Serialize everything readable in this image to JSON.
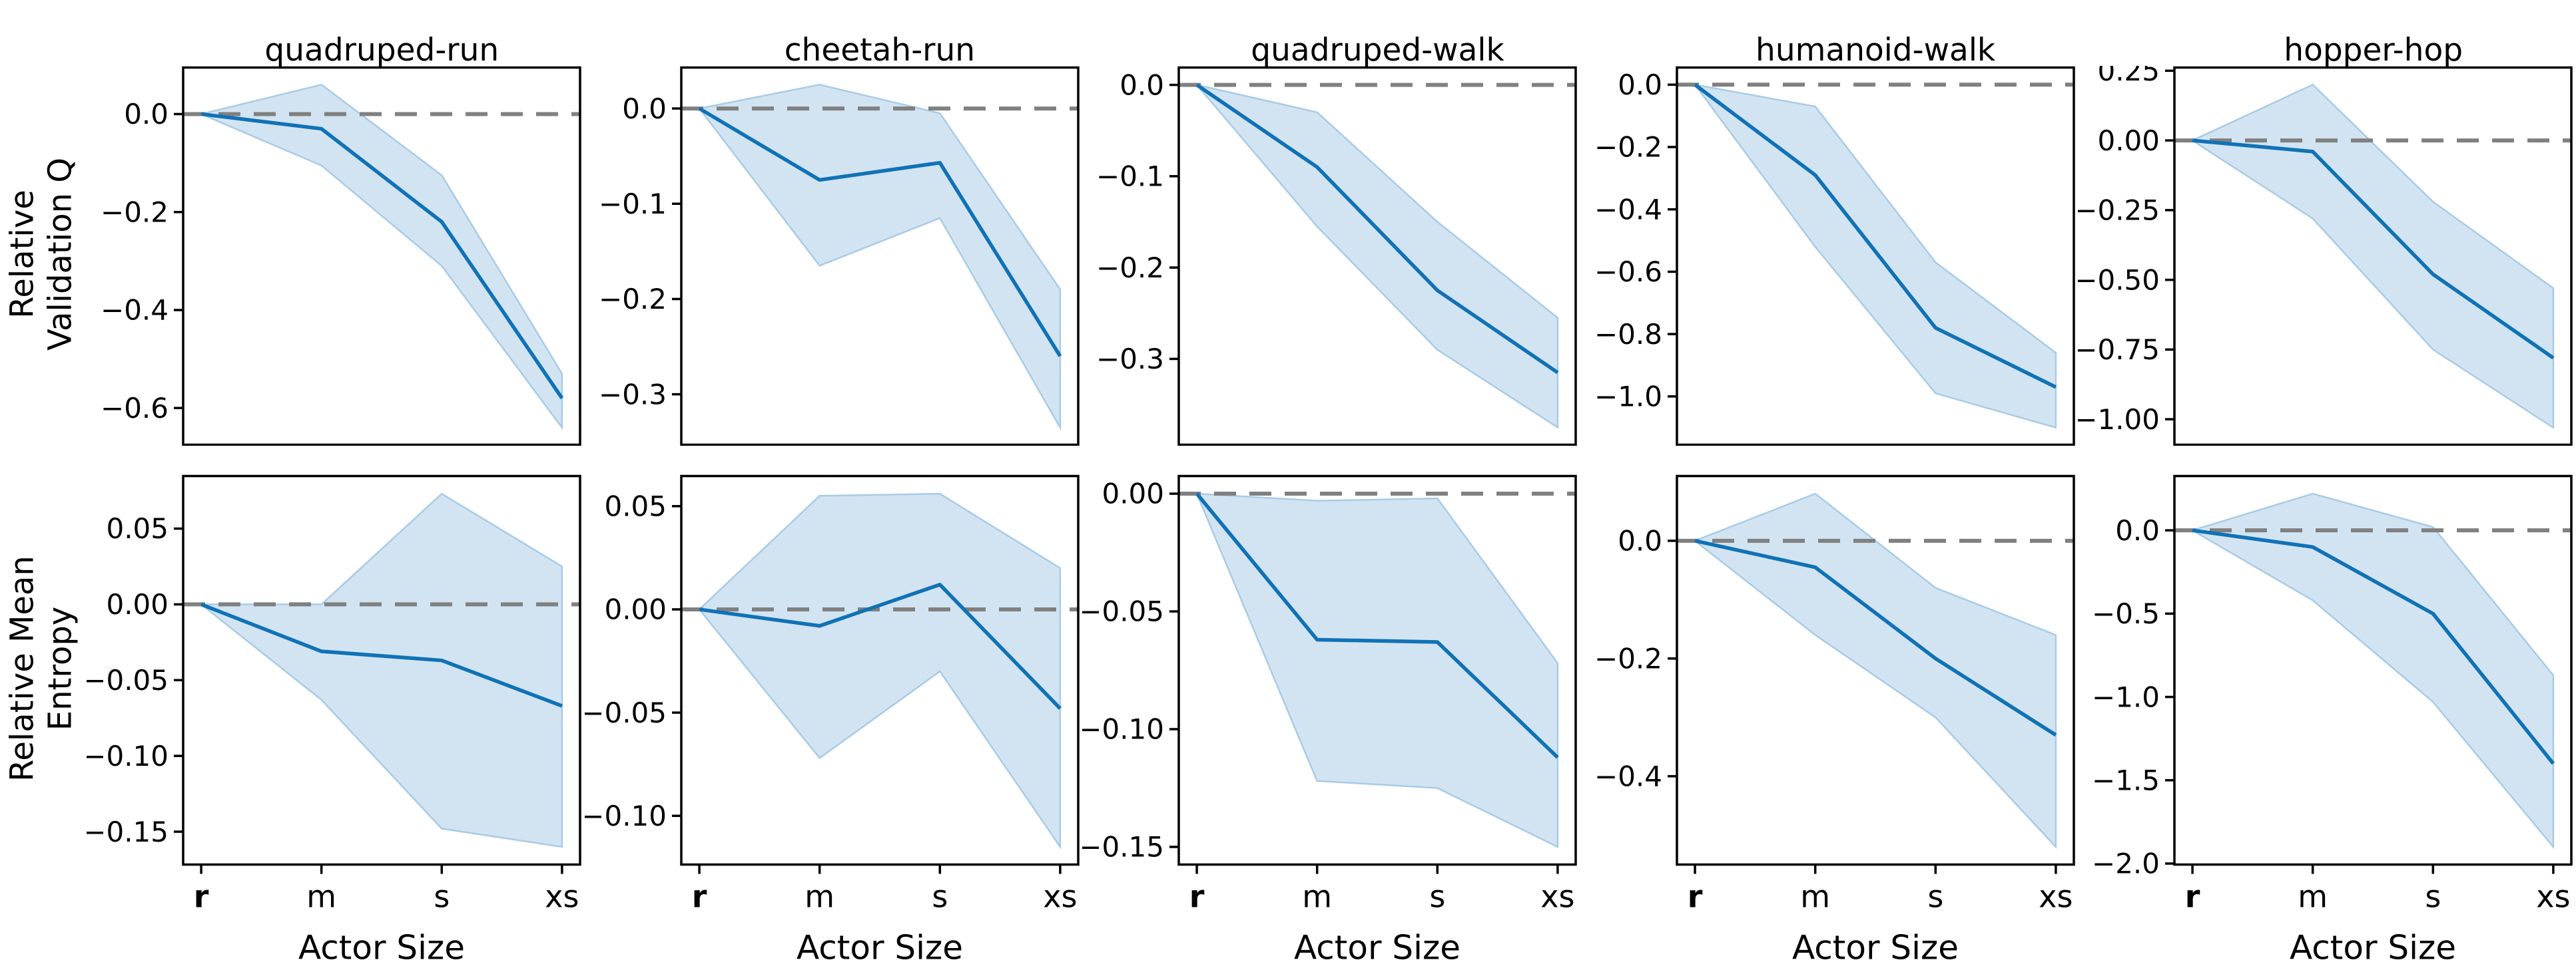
{
  "chart_data": {
    "type": "line",
    "description": "2x5 grid of line plots with shaded confidence bands versus actor size",
    "xlabel": "Actor Size",
    "x_categories": [
      "r",
      "m",
      "s",
      "xs"
    ],
    "columns": [
      "quadruped-run",
      "cheetah-run",
      "quadruped-walk",
      "humanoid-walk",
      "hopper-hop"
    ],
    "row_labels": [
      {
        "line1": "Relative",
        "line2": "Validation Q"
      },
      {
        "line1": "Relative Mean",
        "line2": "Entropy"
      }
    ],
    "colors": {
      "line": "#1072b6",
      "band_fill": "#d2e4f2",
      "band_edge": "#a8cbe6",
      "zero_line": "#808080",
      "axes": "#000000"
    },
    "legend": "none",
    "grid_lines": "off",
    "zero_baseline": 0.0,
    "subplots": [
      {
        "row": 0,
        "col": 0,
        "title": "quadruped-run",
        "ylim": [
          0.095,
          -0.675
        ],
        "ytick_values": [
          0.0,
          -0.2,
          -0.4,
          -0.6
        ],
        "ytick_labels": [
          "0.0",
          "−0.2",
          "−0.4",
          "−0.6"
        ],
        "mean": [
          0.0,
          -0.03,
          -0.22,
          -0.58
        ],
        "upper": [
          0.0,
          0.06,
          -0.125,
          -0.53
        ],
        "lower": [
          0.0,
          -0.105,
          -0.31,
          -0.64
        ]
      },
      {
        "row": 0,
        "col": 1,
        "title": "cheetah-run",
        "ylim": [
          0.043,
          -0.353
        ],
        "ytick_values": [
          0.0,
          -0.1,
          -0.2,
          -0.3
        ],
        "ytick_labels": [
          "0.0",
          "−0.1",
          "−0.2",
          "−0.3"
        ],
        "mean": [
          0.0,
          -0.075,
          -0.057,
          -0.26
        ],
        "upper": [
          0.0,
          0.025,
          -0.005,
          -0.19
        ],
        "lower": [
          0.0,
          -0.165,
          -0.115,
          -0.335
        ]
      },
      {
        "row": 0,
        "col": 2,
        "title": "quadruped-walk",
        "ylim": [
          0.019,
          -0.394
        ],
        "ytick_values": [
          0.0,
          -0.1,
          -0.2,
          -0.3
        ],
        "ytick_labels": [
          "0.0",
          "−0.1",
          "−0.2",
          "−0.3"
        ],
        "mean": [
          0.0,
          -0.09,
          -0.225,
          -0.315
        ],
        "upper": [
          0.0,
          -0.03,
          -0.15,
          -0.255
        ],
        "lower": [
          0.0,
          -0.155,
          -0.29,
          -0.375
        ]
      },
      {
        "row": 0,
        "col": 3,
        "title": "humanoid-walk",
        "ylim": [
          0.055,
          -1.155
        ],
        "ytick_values": [
          0.0,
          -0.2,
          -0.4,
          -0.6,
          -0.8,
          -1.0
        ],
        "ytick_labels": [
          "0.0",
          "−0.2",
          "−0.4",
          "−0.6",
          "−0.8",
          "−1.0"
        ],
        "mean": [
          0.0,
          -0.29,
          -0.78,
          -0.97
        ],
        "upper": [
          0.0,
          -0.07,
          -0.57,
          -0.86
        ],
        "lower": [
          0.0,
          -0.52,
          -0.99,
          -1.1
        ]
      },
      {
        "row": 0,
        "col": 4,
        "title": "hopper-hop",
        "ylim": [
          0.2615,
          -1.0915
        ],
        "ytick_values": [
          0.25,
          0.0,
          -0.25,
          -0.5,
          -0.75,
          -1.0
        ],
        "ytick_labels": [
          "0.25",
          "0.00",
          "−0.25",
          "−0.50",
          "−0.75",
          "−1.00"
        ],
        "mean": [
          0.0,
          -0.04,
          -0.48,
          -0.78
        ],
        "upper": [
          0.0,
          0.2,
          -0.22,
          -0.53
        ],
        "lower": [
          0.0,
          -0.28,
          -0.75,
          -1.03
        ]
      },
      {
        "row": 1,
        "col": 0,
        "title": "quadruped-run",
        "ylim": [
          0.0847,
          -0.1717
        ],
        "ytick_values": [
          0.05,
          0.0,
          -0.05,
          -0.1,
          -0.15
        ],
        "ytick_labels": [
          "0.05",
          "0.00",
          "−0.05",
          "−0.10",
          "−0.15"
        ],
        "mean": [
          0.0,
          -0.031,
          -0.037,
          -0.067
        ],
        "upper": [
          0.0,
          0.0,
          0.073,
          0.025
        ],
        "lower": [
          0.0,
          -0.063,
          -0.148,
          -0.16
        ]
      },
      {
        "row": 1,
        "col": 1,
        "title": "cheetah-run",
        "ylim": [
          0.0646,
          -0.1236
        ],
        "ytick_values": [
          0.05,
          0.0,
          -0.05,
          -0.1
        ],
        "ytick_labels": [
          "0.05",
          "0.00",
          "−0.05",
          "−0.10"
        ],
        "mean": [
          0.0,
          -0.008,
          0.012,
          -0.048
        ],
        "upper": [
          0.0,
          0.055,
          0.056,
          0.02
        ],
        "lower": [
          0.0,
          -0.072,
          -0.03,
          -0.115
        ]
      },
      {
        "row": 1,
        "col": 2,
        "title": "quadruped-walk",
        "ylim": [
          0.0075,
          -0.1575
        ],
        "ytick_values": [
          0.0,
          -0.05,
          -0.1,
          -0.15
        ],
        "ytick_labels": [
          "0.00",
          "−0.05",
          "−0.10",
          "−0.15"
        ],
        "mean": [
          0.0,
          -0.062,
          -0.063,
          -0.112
        ],
        "upper": [
          0.0,
          -0.003,
          -0.002,
          -0.072
        ],
        "lower": [
          0.0,
          -0.122,
          -0.125,
          -0.15
        ]
      },
      {
        "row": 1,
        "col": 3,
        "title": "humanoid-walk",
        "ylim": [
          0.11,
          -0.55
        ],
        "ytick_values": [
          0.0,
          -0.2,
          -0.4
        ],
        "ytick_labels": [
          "0.0",
          "−0.2",
          "−0.4"
        ],
        "mean": [
          0.0,
          -0.045,
          -0.2,
          -0.33
        ],
        "upper": [
          0.0,
          0.08,
          -0.08,
          -0.16
        ],
        "lower": [
          0.0,
          -0.16,
          -0.3,
          -0.52
        ]
      },
      {
        "row": 1,
        "col": 4,
        "title": "hopper-hop",
        "ylim": [
          0.326,
          -2.006
        ],
        "ytick_values": [
          0.0,
          -0.5,
          -1.0,
          -1.5,
          -2.0
        ],
        "ytick_labels": [
          "0.0",
          "−0.5",
          "−1.0",
          "−1.5",
          "−2.0"
        ],
        "mean": [
          0.0,
          -0.1,
          -0.5,
          -1.4
        ],
        "upper": [
          0.0,
          0.22,
          0.02,
          -0.87
        ],
        "lower": [
          0.0,
          -0.42,
          -1.03,
          -1.9
        ]
      }
    ]
  }
}
